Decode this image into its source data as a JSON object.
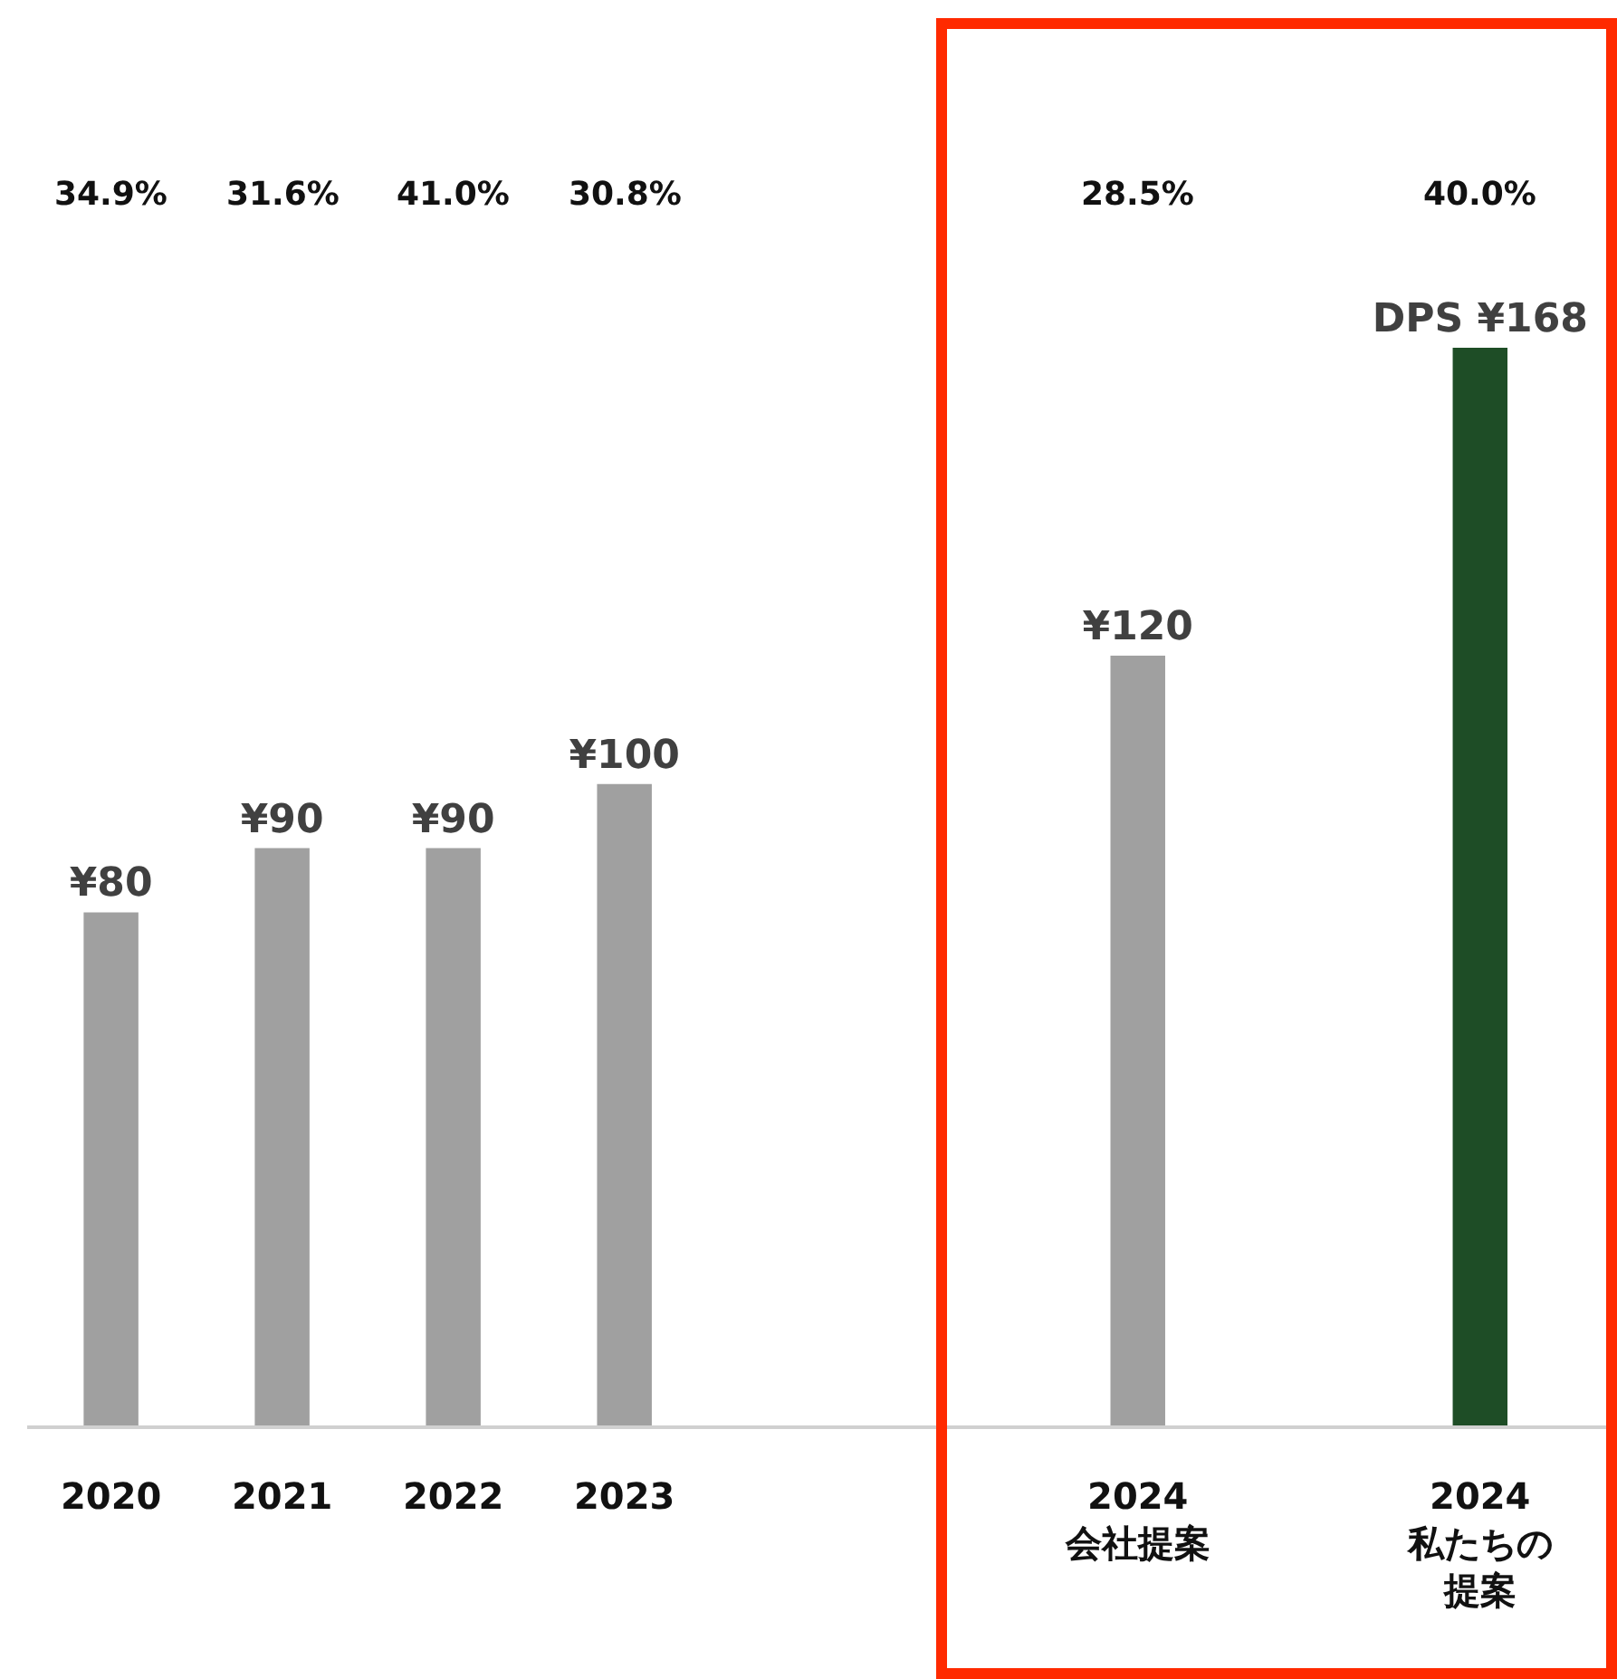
{
  "chart_data": {
    "type": "bar",
    "categories": [
      "2020",
      "2021",
      "2022",
      "2023",
      null,
      null,
      "2024\n会社提案",
      null,
      "2024\n私たちの提案"
    ],
    "values": [
      80,
      90,
      90,
      100,
      null,
      null,
      120,
      null,
      168
    ],
    "value_labels": [
      "¥80",
      "¥90",
      "¥90",
      "¥100",
      null,
      null,
      "¥120",
      null,
      "DPS ¥168"
    ],
    "colors": [
      "#a0a0a0",
      "#a0a0a0",
      "#a0a0a0",
      "#a0a0a0",
      null,
      null,
      "#a0a0a0",
      null,
      "#1e4d26"
    ],
    "annotations": [
      "34.9%",
      "31.6%",
      "41.0%",
      "30.8%",
      "28.5%",
      "40.0%"
    ],
    "grid": false,
    "legend": false
  }
}
